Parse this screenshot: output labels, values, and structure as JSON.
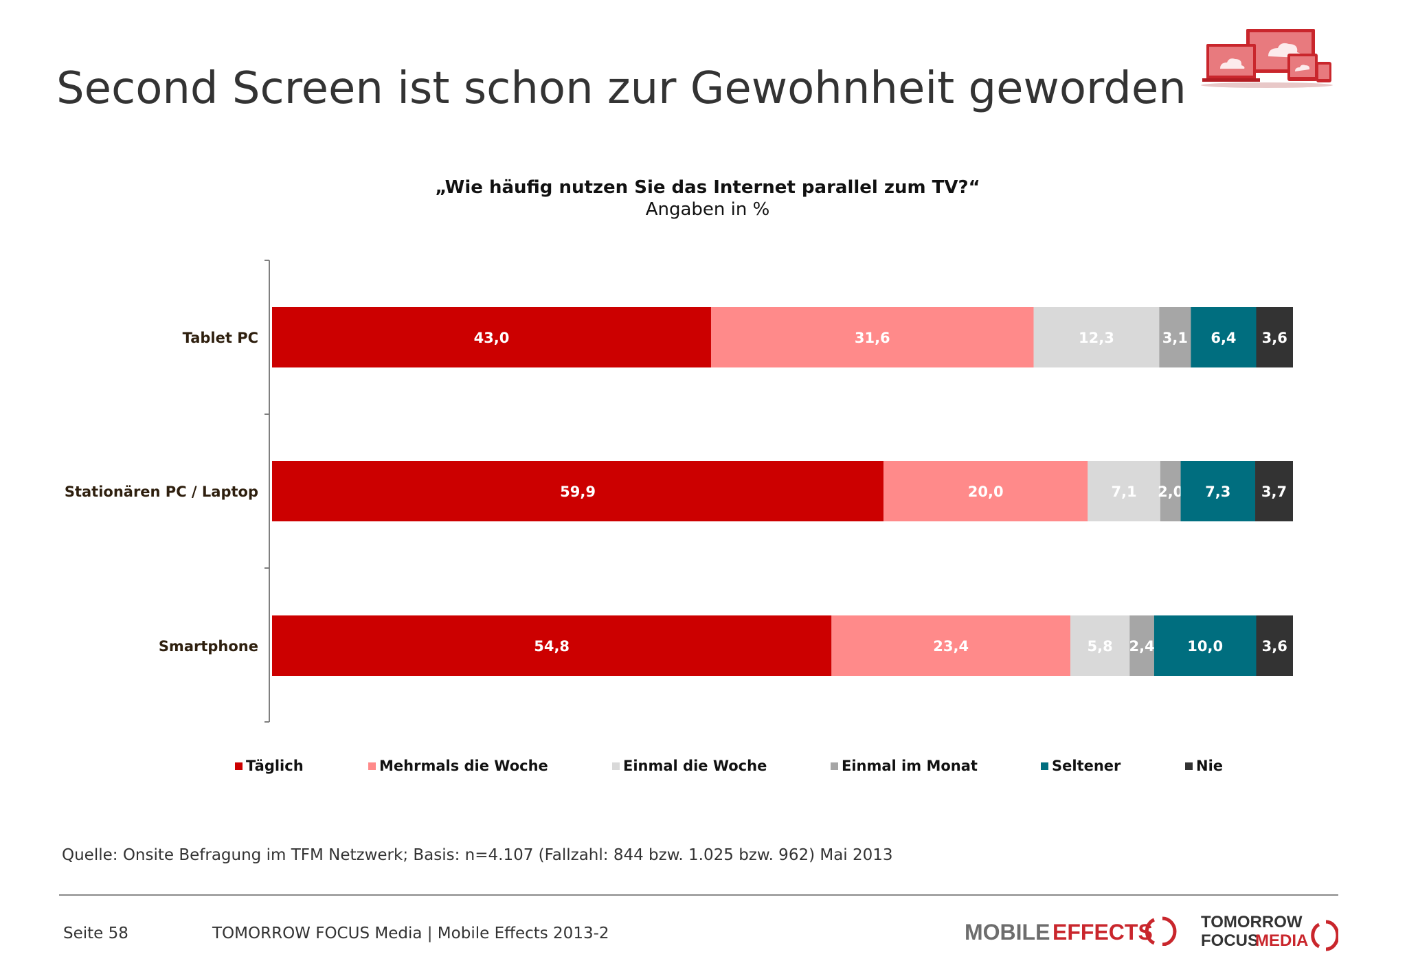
{
  "title": "Second Screen ist schon zur Gewohnheit geworden",
  "chart_data": {
    "type": "bar",
    "orientation": "horizontal",
    "stacked": true,
    "title": "„Wie häufig nutzen Sie das Internet parallel zum TV?“",
    "subtitle": "Angaben in %",
    "categories": [
      "Tablet PC",
      "Stationären PC / Laptop",
      "Smartphone"
    ],
    "series": [
      {
        "name": "Täglich",
        "color": "#cc0000",
        "label_color": "#ffffff",
        "values": [
          43.0,
          59.9,
          54.8
        ],
        "labels": [
          "43,0",
          "59,9",
          "54,8"
        ]
      },
      {
        "name": "Mehrmals die Woche",
        "color": "#ff8a8a",
        "label_color": "#ffffff",
        "values": [
          31.6,
          20.0,
          23.4
        ],
        "labels": [
          "31,6",
          "20,0",
          "23,4"
        ]
      },
      {
        "name": "Einmal die Woche",
        "color": "#d9d9d9",
        "label_color": "#ffffff",
        "values": [
          12.3,
          7.1,
          5.8
        ],
        "labels": [
          "12,3",
          "7,1",
          "5,8"
        ]
      },
      {
        "name": "Einmal im Monat",
        "color": "#a6a6a6",
        "label_color": "#ffffff",
        "values": [
          3.1,
          2.0,
          2.4
        ],
        "labels": [
          "3,1",
          "2,0",
          "2,4"
        ]
      },
      {
        "name": "Seltener",
        "color": "#006e7f",
        "label_color": "#ffffff",
        "values": [
          6.4,
          7.3,
          10.0
        ],
        "labels": [
          "6,4",
          "7,3",
          "10,0"
        ]
      },
      {
        "name": "Nie",
        "color": "#333333",
        "label_color": "#ffffff",
        "values": [
          3.6,
          3.7,
          3.6
        ],
        "labels": [
          "3,6",
          "3,7",
          "3,6"
        ]
      }
    ],
    "xlim": [
      0,
      100
    ],
    "grid": false,
    "legend_position": "bottom"
  },
  "source": "Quelle: Onsite Befragung im TFM Netzwerk; Basis: n=4.107 (Fallzahl: 844 bzw. 1.025 bzw. 962) Mai 2013",
  "footer": {
    "page": "Seite 58",
    "text": "TOMORROW FOCUS Media | Mobile Effects 2013-2",
    "logo_mobile": "MOBILE",
    "logo_effects": "EFFECTS",
    "logo_tomorrow": "TOMORROW",
    "logo_focus": "FOCUS",
    "logo_media": "MEDIA"
  },
  "icons": {
    "header": "devices-cloud-icon"
  }
}
